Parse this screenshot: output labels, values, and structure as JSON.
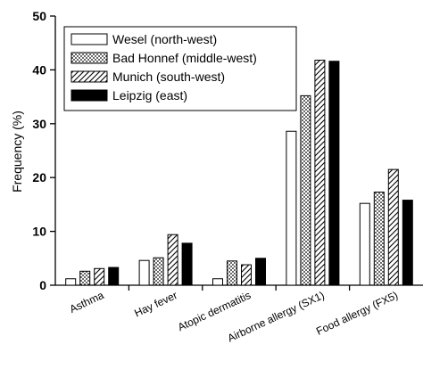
{
  "chart_data": {
    "type": "bar",
    "title": "",
    "xlabel": "",
    "ylabel": "Frequency (%)",
    "ylim": [
      0,
      50
    ],
    "yticks": [
      0,
      10,
      20,
      30,
      40,
      50
    ],
    "grid": false,
    "legend_position": "top-left",
    "categories": [
      "Asthma",
      "Hay fever",
      "Atopic dermatitis",
      "Airborne allergy (SX1)",
      "Food allergy (FX5)"
    ],
    "series": [
      {
        "name": "Wesel (north-west)",
        "pattern": "open",
        "values": [
          1.2,
          4.6,
          1.2,
          28.6,
          15.2
        ]
      },
      {
        "name": "Bad Honnef (middle-west)",
        "pattern": "dotted",
        "values": [
          2.6,
          5.1,
          4.5,
          35.2,
          17.3
        ]
      },
      {
        "name": "Munich (south-west)",
        "pattern": "hatched",
        "values": [
          3.1,
          9.4,
          3.8,
          41.8,
          21.5
        ]
      },
      {
        "name": "Leipzig (east)",
        "pattern": "solid",
        "values": [
          3.3,
          7.8,
          5.0,
          41.6,
          15.8
        ]
      }
    ],
    "colors": {
      "bar_stroke": "#000000",
      "open_fill": "#ffffff",
      "solid_fill": "#000000"
    }
  }
}
